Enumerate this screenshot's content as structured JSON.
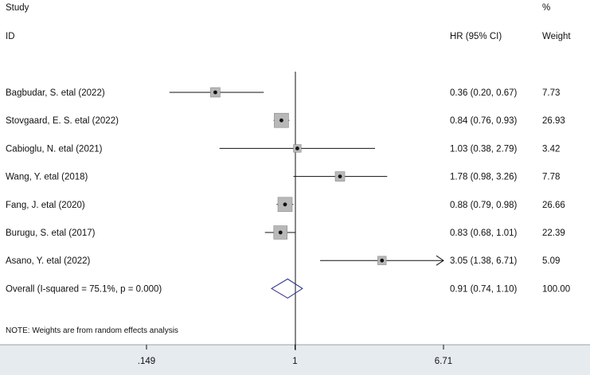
{
  "header": {
    "study_label": "Study",
    "id_label": "ID",
    "percent_label": "%",
    "hr_label": "HR (95% CI)",
    "weight_label": "Weight"
  },
  "footnote": "NOTE: Weights are from random effects analysis",
  "chart_data": {
    "type": "forest",
    "x_scale": "log",
    "null_line": 1,
    "xticks": [
      0.149,
      1,
      6.71
    ],
    "xtick_labels": [
      ".149",
      "1",
      "6.71"
    ],
    "xlim": [
      0.149,
      6.71
    ],
    "studies": [
      {
        "label": "Bagbudar, S. etal (2022)",
        "hr": 0.36,
        "lo": 0.2,
        "hi": 0.67,
        "ci_text": "0.36 (0.20, 0.67)",
        "weight": 7.73,
        "weight_text": "7.73"
      },
      {
        "label": "Stovgaard, E. S. etal (2022)",
        "hr": 0.84,
        "lo": 0.76,
        "hi": 0.93,
        "ci_text": "0.84 (0.76, 0.93)",
        "weight": 26.93,
        "weight_text": "26.93"
      },
      {
        "label": "Cabioglu, N. etal (2021)",
        "hr": 1.03,
        "lo": 0.38,
        "hi": 2.79,
        "ci_text": "1.03 (0.38, 2.79)",
        "weight": 3.42,
        "weight_text": "3.42"
      },
      {
        "label": "Wang, Y. etal (2018)",
        "hr": 1.78,
        "lo": 0.98,
        "hi": 3.26,
        "ci_text": "1.78 (0.98, 3.26)",
        "weight": 7.78,
        "weight_text": "7.78"
      },
      {
        "label": "Fang, J. etal (2020)",
        "hr": 0.88,
        "lo": 0.79,
        "hi": 0.98,
        "ci_text": "0.88 (0.79, 0.98)",
        "weight": 26.66,
        "weight_text": "26.66"
      },
      {
        "label": "Burugu, S. etal (2017)",
        "hr": 0.83,
        "lo": 0.68,
        "hi": 1.01,
        "ci_text": "0.83 (0.68, 1.01)",
        "weight": 22.39,
        "weight_text": "22.39"
      },
      {
        "label": "Asano, Y. etal (2022)",
        "hr": 3.05,
        "lo": 1.38,
        "hi": 6.71,
        "ci_text": "3.05 (1.38, 6.71)",
        "weight": 5.09,
        "weight_text": "5.09",
        "arrow_right": true
      }
    ],
    "overall": {
      "label": "Overall  (I-squared = 75.1%, p = 0.000)",
      "hr": 0.91,
      "lo": 0.74,
      "hi": 1.1,
      "ci_text": "0.91 (0.74, 1.10)",
      "weight_text": "100.00"
    },
    "colors": {
      "box_fill": "#b8b8b8",
      "box_stroke": "#888888",
      "diamond": "#2b2b8c",
      "line": "#111111",
      "axis_band": "#e6ebf0"
    }
  }
}
